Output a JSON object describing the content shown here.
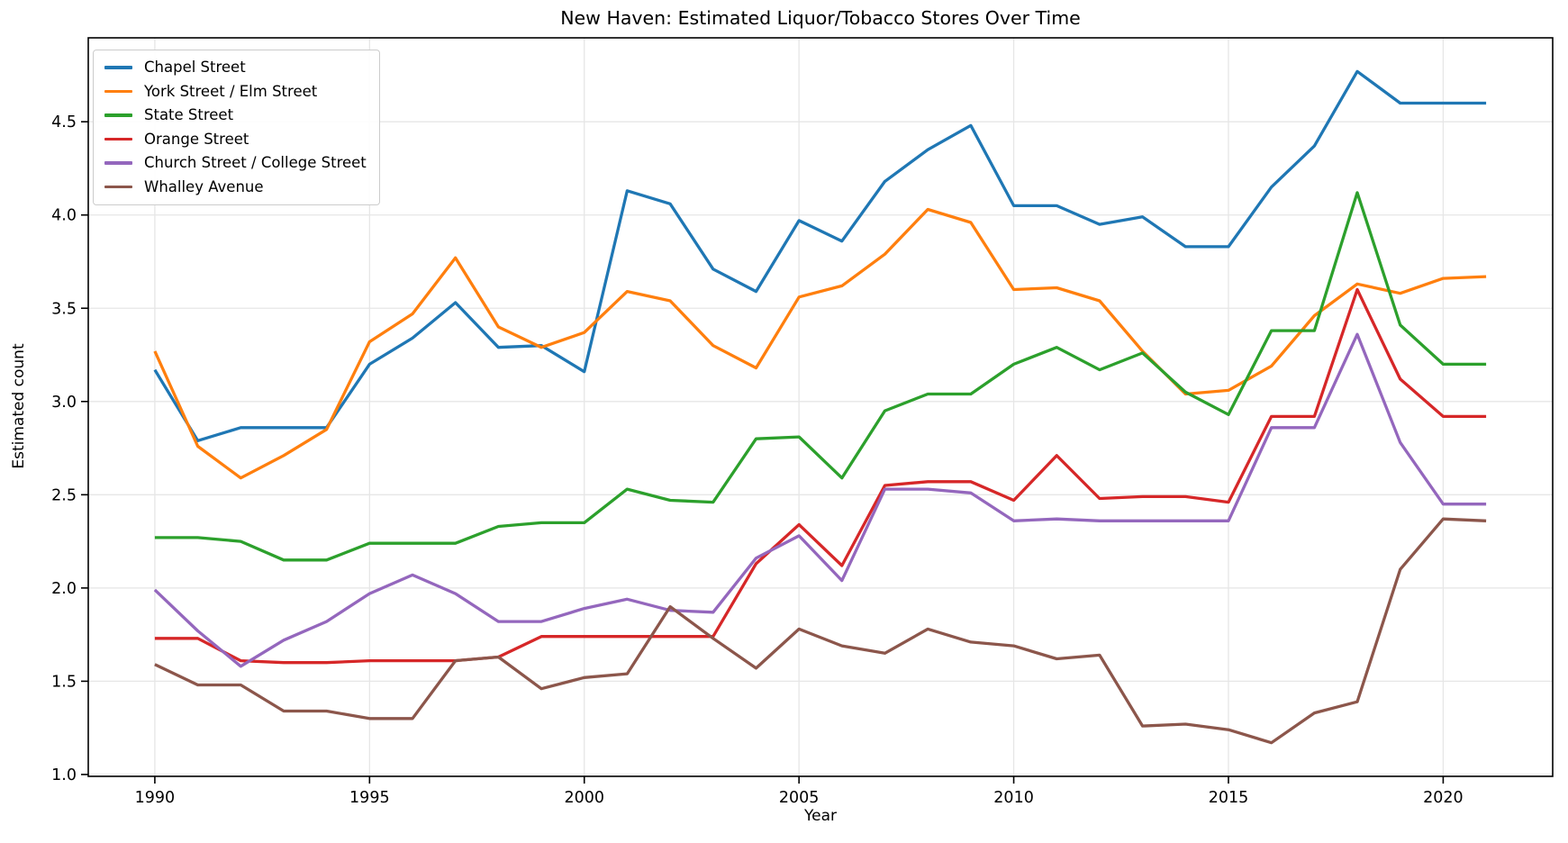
{
  "chart_data": {
    "type": "line",
    "title": "New Haven: Estimated Liquor/Tobacco Stores Over Time",
    "xlabel": "Year",
    "ylabel": "Estimated count",
    "x": [
      1990,
      1991,
      1992,
      1993,
      1994,
      1995,
      1996,
      1997,
      1998,
      1999,
      2000,
      2001,
      2002,
      2003,
      2004,
      2005,
      2006,
      2007,
      2008,
      2009,
      2010,
      2011,
      2012,
      2013,
      2014,
      2015,
      2016,
      2017,
      2018,
      2019,
      2020,
      2021
    ],
    "xticks": [
      1990,
      1995,
      2000,
      2005,
      2010,
      2015,
      2020
    ],
    "yticks": [
      1.0,
      1.5,
      2.0,
      2.5,
      3.0,
      3.5,
      4.0,
      4.5
    ],
    "xlim": [
      1988.45,
      2022.55
    ],
    "ylim": [
      0.99,
      4.95
    ],
    "grid": true,
    "legend_position": "upper left",
    "series": [
      {
        "name": "Chapel Street",
        "color": "#1f77b4",
        "values": [
          3.17,
          2.79,
          2.86,
          2.86,
          2.86,
          3.2,
          3.34,
          3.53,
          3.29,
          3.3,
          3.16,
          4.13,
          4.06,
          3.71,
          3.59,
          3.97,
          3.86,
          4.18,
          4.35,
          4.48,
          4.05,
          4.05,
          3.95,
          3.99,
          3.83,
          3.83,
          4.15,
          4.37,
          4.77,
          4.6,
          4.6,
          4.6
        ]
      },
      {
        "name": "York Street / Elm Street",
        "color": "#ff7f0e",
        "values": [
          3.27,
          2.76,
          2.59,
          2.71,
          2.85,
          3.32,
          3.47,
          3.77,
          3.4,
          3.29,
          3.37,
          3.59,
          3.54,
          3.3,
          3.18,
          3.56,
          3.62,
          3.79,
          4.03,
          3.96,
          3.6,
          3.61,
          3.54,
          3.27,
          3.04,
          3.06,
          3.19,
          3.46,
          3.63,
          3.58,
          3.66,
          3.67
        ]
      },
      {
        "name": "State Street",
        "color": "#2ca02c",
        "values": [
          2.27,
          2.27,
          2.25,
          2.15,
          2.15,
          2.24,
          2.24,
          2.24,
          2.33,
          2.35,
          2.35,
          2.53,
          2.47,
          2.46,
          2.8,
          2.81,
          2.59,
          2.95,
          3.04,
          3.04,
          3.2,
          3.29,
          3.17,
          3.26,
          3.05,
          2.93,
          3.38,
          3.38,
          4.12,
          3.41,
          3.2,
          3.2
        ]
      },
      {
        "name": "Orange Street",
        "color": "#d62728",
        "values": [
          1.73,
          1.73,
          1.61,
          1.6,
          1.6,
          1.61,
          1.61,
          1.61,
          1.63,
          1.74,
          1.74,
          1.74,
          1.74,
          1.74,
          2.13,
          2.34,
          2.12,
          2.55,
          2.57,
          2.57,
          2.47,
          2.71,
          2.48,
          2.49,
          2.49,
          2.46,
          2.92,
          2.92,
          3.6,
          3.12,
          2.92,
          2.92
        ]
      },
      {
        "name": "Church Street / College Street",
        "color": "#9467bd",
        "values": [
          1.99,
          1.77,
          1.58,
          1.72,
          1.82,
          1.97,
          2.07,
          1.97,
          1.82,
          1.82,
          1.89,
          1.94,
          1.88,
          1.87,
          2.16,
          2.28,
          2.04,
          2.53,
          2.53,
          2.51,
          2.36,
          2.37,
          2.36,
          2.36,
          2.36,
          2.36,
          2.86,
          2.86,
          3.36,
          2.78,
          2.45,
          2.45
        ]
      },
      {
        "name": "Whalley Avenue",
        "color": "#8c564b",
        "values": [
          1.59,
          1.48,
          1.48,
          1.34,
          1.34,
          1.3,
          1.3,
          1.61,
          1.63,
          1.46,
          1.52,
          1.54,
          1.9,
          1.73,
          1.57,
          1.78,
          1.69,
          1.65,
          1.78,
          1.71,
          1.69,
          1.62,
          1.64,
          1.26,
          1.27,
          1.24,
          1.17,
          1.33,
          1.39,
          2.1,
          2.37,
          2.36
        ]
      }
    ]
  }
}
